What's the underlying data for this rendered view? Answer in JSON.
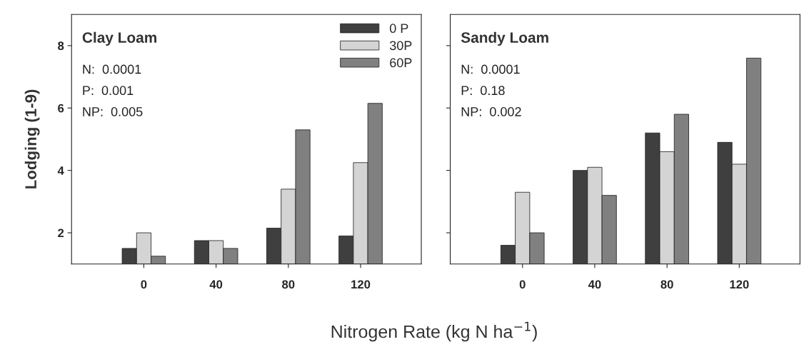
{
  "chart_data": [
    {
      "type": "bar",
      "title": "Clay Loam",
      "ylabel": "Lodging (1-9)",
      "xlabel": "Nitrogen Rate (kg N ha$^{−1}$)",
      "categories": [
        "0",
        "40",
        "80",
        "120"
      ],
      "series": [
        {
          "name": "0 P",
          "color": "#3f3f3f",
          "values": [
            1.5,
            1.75,
            2.15,
            1.9
          ]
        },
        {
          "name": "30P",
          "color": "#d4d4d4",
          "values": [
            2.0,
            1.75,
            3.4,
            4.25
          ]
        },
        {
          "name": "60P",
          "color": "#808080",
          "values": [
            1.25,
            1.5,
            5.3,
            6.15
          ]
        }
      ],
      "annotations": [
        "N:  0.0001",
        "P:  0.001",
        "NP:  0.005"
      ],
      "ylim": [
        1,
        9
      ],
      "yticks": [
        2,
        4,
        6,
        8
      ],
      "grid": false,
      "legend": "top right"
    },
    {
      "type": "bar",
      "title": "Sandy Loam",
      "categories": [
        "0",
        "40",
        "80",
        "120"
      ],
      "series": [
        {
          "color": "#3f3f3f",
          "values": [
            1.6,
            4.0,
            5.2,
            4.9
          ]
        },
        {
          "color": "#d4d4d4",
          "values": [
            3.3,
            4.1,
            4.6,
            4.2
          ]
        },
        {
          "color": "#808080",
          "values": [
            2.0,
            3.2,
            5.8,
            7.6
          ]
        }
      ],
      "annotations": [
        "N:  0.0001",
        "P:  0.18",
        "NP:  0.002"
      ],
      "ylim": [
        1,
        9
      ],
      "yticks": [
        2,
        4,
        6,
        8
      ],
      "grid": false,
      "tick_labels": "x"
    }
  ]
}
